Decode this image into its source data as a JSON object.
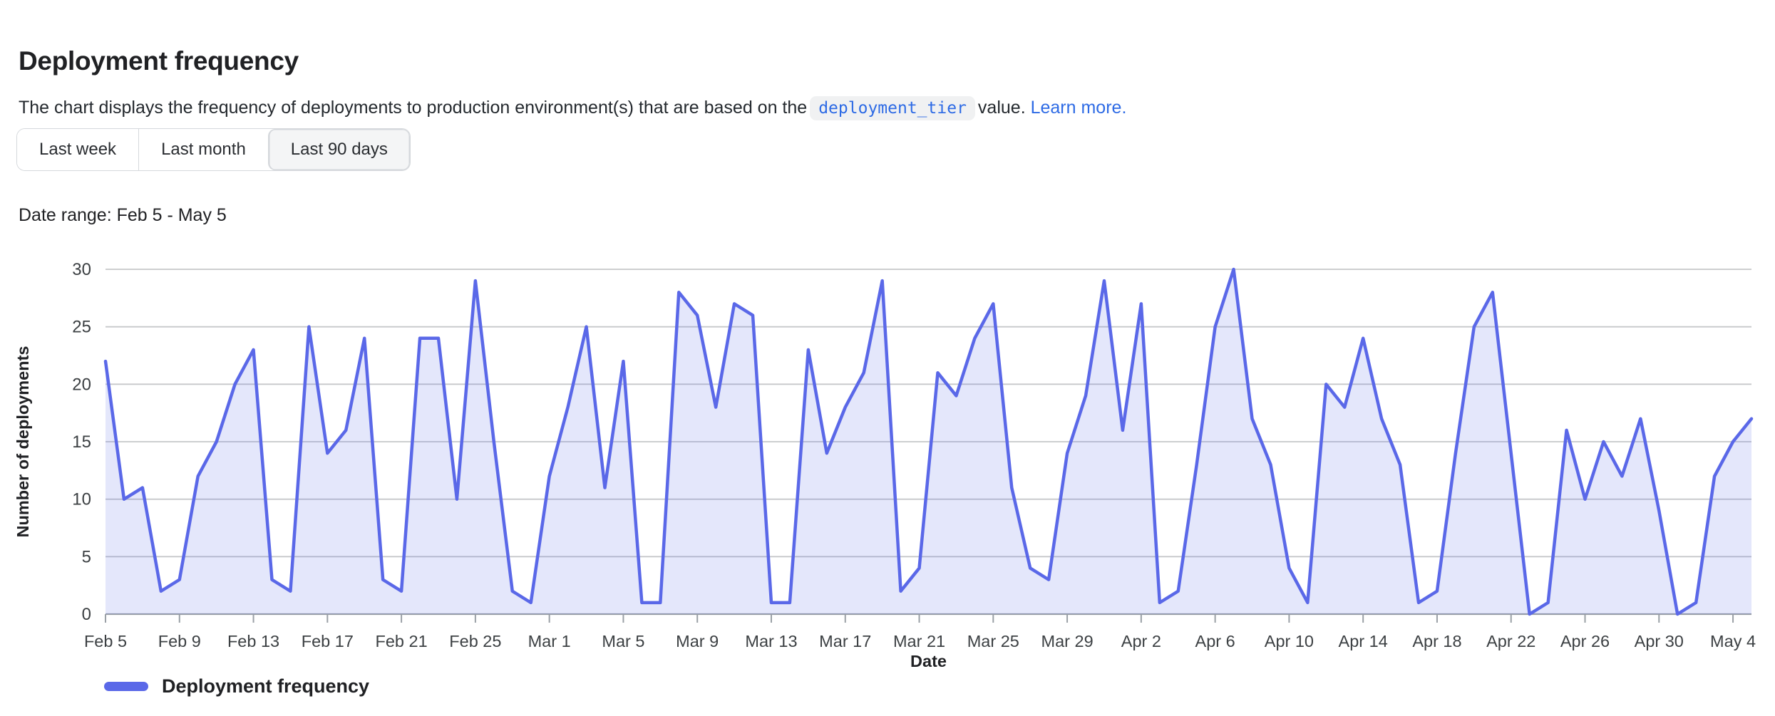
{
  "header": {
    "title": "Deployment frequency",
    "description_before_code": "The chart displays the frequency of deployments to production environment(s) that are based on the",
    "code_chip": "deployment_tier",
    "description_after_code": "value.",
    "learn_more": "Learn more."
  },
  "time_range_buttons": [
    {
      "label": "Last week",
      "selected": false
    },
    {
      "label": "Last month",
      "selected": false
    },
    {
      "label": "Last 90 days",
      "selected": true
    }
  ],
  "date_range_label": "Date range: Feb 5 - May 5",
  "chart_data": {
    "type": "area",
    "title": "",
    "x_label": "Date",
    "y_label": "Number of deployments",
    "y_max": 30,
    "y_ticks": [
      0,
      5,
      10,
      15,
      20,
      25,
      30
    ],
    "x_tick_interval": 4,
    "grid": true,
    "legend_position": "bottom-left",
    "dates": [
      "Feb 5",
      "Feb 6",
      "Feb 7",
      "Feb 8",
      "Feb 9",
      "Feb 10",
      "Feb 11",
      "Feb 12",
      "Feb 13",
      "Feb 14",
      "Feb 15",
      "Feb 16",
      "Feb 17",
      "Feb 18",
      "Feb 19",
      "Feb 20",
      "Feb 21",
      "Feb 22",
      "Feb 23",
      "Feb 24",
      "Feb 25",
      "Feb 26",
      "Feb 27",
      "Feb 28",
      "Mar 1",
      "Mar 2",
      "Mar 3",
      "Mar 4",
      "Mar 5",
      "Mar 6",
      "Mar 7",
      "Mar 8",
      "Mar 9",
      "Mar 10",
      "Mar 11",
      "Mar 12",
      "Mar 13",
      "Mar 14",
      "Mar 15",
      "Mar 16",
      "Mar 17",
      "Mar 18",
      "Mar 19",
      "Mar 20",
      "Mar 21",
      "Mar 22",
      "Mar 23",
      "Mar 24",
      "Mar 25",
      "Mar 26",
      "Mar 27",
      "Mar 28",
      "Mar 29",
      "Mar 30",
      "Mar 31",
      "Apr 1",
      "Apr 2",
      "Apr 3",
      "Apr 4",
      "Apr 5",
      "Apr 6",
      "Apr 7",
      "Apr 8",
      "Apr 9",
      "Apr 10",
      "Apr 11",
      "Apr 12",
      "Apr 13",
      "Apr 14",
      "Apr 15",
      "Apr 16",
      "Apr 17",
      "Apr 18",
      "Apr 19",
      "Apr 20",
      "Apr 21",
      "Apr 22",
      "Apr 23",
      "Apr 24",
      "Apr 25",
      "Apr 26",
      "Apr 27",
      "Apr 28",
      "Apr 29",
      "Apr 30",
      "May 1",
      "May 2",
      "May 3",
      "May 4",
      "May 5"
    ],
    "series": [
      {
        "name": "Deployment frequency",
        "values": [
          22,
          10,
          11,
          2,
          3,
          12,
          15,
          20,
          23,
          3,
          2,
          25,
          14,
          16,
          24,
          3,
          2,
          24,
          24,
          10,
          29,
          15,
          2,
          1,
          12,
          18,
          25,
          11,
          22,
          1,
          1,
          28,
          26,
          18,
          27,
          26,
          1,
          1,
          23,
          14,
          18,
          21,
          29,
          2,
          4,
          21,
          19,
          24,
          27,
          11,
          4,
          3,
          14,
          19,
          29,
          16,
          27,
          1,
          2,
          13,
          25,
          30,
          17,
          13,
          4,
          1,
          20,
          18,
          24,
          17,
          13,
          1,
          2,
          14,
          25,
          28,
          14,
          0,
          1,
          16,
          10,
          15,
          12,
          17,
          9,
          0,
          1,
          12,
          15,
          17
        ]
      }
    ],
    "colors": {
      "line": "#5A68E8",
      "area_fill": "rgba(90,104,232,0.16)",
      "grid_line": "#c6c8ca",
      "axis_line": "#9aa0a6",
      "tick_text": "#3c4043",
      "axis_title": "#202124",
      "link": "#2e6be5",
      "code_text": "#2e6be5",
      "code_bg": "#f0f1f2",
      "button_border": "#d5d8dc",
      "button_selected_bg": "#f4f5f6"
    }
  }
}
